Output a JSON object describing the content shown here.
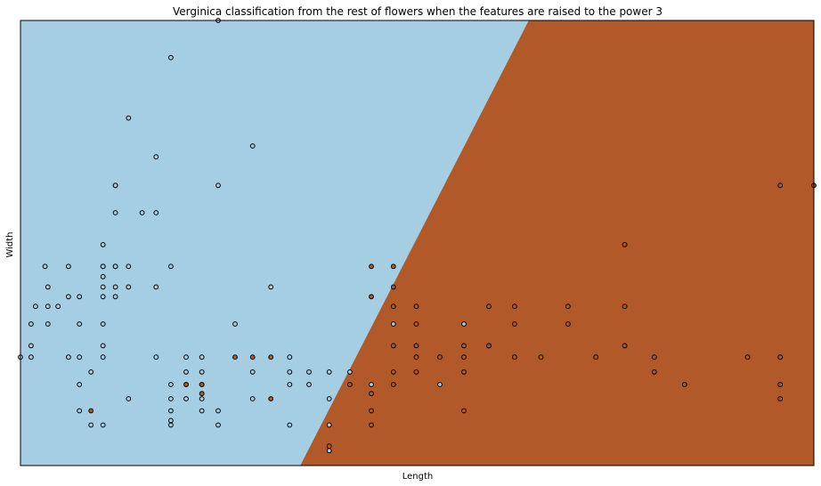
{
  "chart_data": {
    "type": "scatter",
    "title": "Verginica classification from the rest of flowers when the features are raised to the power 3",
    "xlabel": "Length",
    "ylabel": "Width",
    "xlim": [
      64.0,
      512.0
    ],
    "ylim": [
      8.0,
      86.0
    ],
    "grid": false,
    "legend": "none",
    "background_regions": [
      {
        "class": "not virginica",
        "color": "#a6cee3"
      },
      {
        "class": "virginica",
        "color": "#b15928"
      }
    ],
    "decision_boundary": [
      [
        222.0,
        8.0
      ],
      [
        351.0,
        86.0
      ]
    ],
    "colors": {
      "not_virginica": "#a6cee3",
      "virginica": "#b15928",
      "edge": "#000000"
    },
    "series": [
      {
        "class": "not virginica",
        "points": [
          [
            64.0,
            27.0
          ],
          [
            70.0,
            27.0
          ],
          [
            70.0,
            29.0
          ],
          [
            70.0,
            32.8
          ],
          [
            72.5,
            35.9
          ],
          [
            77.9,
            42.9
          ],
          [
            79.5,
            35.9
          ],
          [
            79.5,
            39.3
          ],
          [
            79.5,
            32.8
          ],
          [
            85.2,
            35.9
          ],
          [
            91.1,
            42.9
          ],
          [
            91.1,
            37.6
          ],
          [
            91.1,
            27.0
          ],
          [
            97.3,
            37.6
          ],
          [
            97.3,
            32.8
          ],
          [
            97.3,
            27.0
          ],
          [
            97.3,
            22.2
          ],
          [
            97.3,
            17.6
          ],
          [
            103.8,
            24.4
          ],
          [
            103.8,
            15.1
          ],
          [
            110.6,
            46.7
          ],
          [
            110.6,
            42.9
          ],
          [
            110.6,
            42.9
          ],
          [
            110.6,
            39.3
          ],
          [
            110.6,
            37.6
          ],
          [
            110.6,
            32.8
          ],
          [
            110.6,
            29.0
          ],
          [
            110.6,
            41.1
          ],
          [
            110.6,
            27.0
          ],
          [
            110.6,
            15.1
          ],
          [
            117.6,
            57.1
          ],
          [
            117.6,
            57.1
          ],
          [
            117.6,
            52.3
          ],
          [
            117.6,
            42.9
          ],
          [
            117.6,
            42.9
          ],
          [
            117.6,
            39.3
          ],
          [
            117.6,
            37.6
          ],
          [
            125.0,
            68.9
          ],
          [
            125.0,
            42.9
          ],
          [
            125.0,
            39.3
          ],
          [
            125.0,
            19.7
          ],
          [
            132.7,
            52.3
          ],
          [
            140.6,
            62.1
          ],
          [
            140.6,
            52.3
          ],
          [
            140.6,
            39.3
          ],
          [
            140.6,
            27.0
          ],
          [
            148.9,
            79.5
          ],
          [
            148.9,
            42.9
          ],
          [
            148.9,
            22.2
          ],
          [
            148.9,
            17.6
          ],
          [
            148.9,
            19.7
          ],
          [
            148.9,
            15.9
          ],
          [
            148.9,
            15.1
          ],
          [
            157.5,
            27.0
          ],
          [
            157.5,
            24.4
          ],
          [
            157.5,
            22.2
          ],
          [
            157.5,
            19.7
          ],
          [
            166.4,
            27.0
          ],
          [
            166.4,
            24.4
          ],
          [
            166.4,
            22.2
          ],
          [
            166.4,
            19.7
          ],
          [
            166.4,
            17.6
          ],
          [
            175.6,
            57.1
          ],
          [
            175.6,
            86.0
          ],
          [
            175.6,
            17.6
          ],
          [
            175.6,
            15.1
          ],
          [
            195.1,
            64.0
          ],
          [
            195.1,
            19.7
          ],
          [
            195.1,
            24.4
          ],
          [
            185.2,
            32.8
          ],
          [
            205.4,
            39.3
          ],
          [
            216.0,
            27.0
          ],
          [
            216.0,
            24.4
          ],
          [
            216.0,
            22.2
          ],
          [
            216.0,
            15.1
          ],
          [
            226.9,
            24.4
          ],
          [
            226.9,
            22.2
          ],
          [
            238.3,
            24.4
          ],
          [
            238.3,
            19.7
          ],
          [
            238.3,
            15.1
          ],
          [
            238.3,
            10.6
          ],
          [
            250.0,
            24.4
          ],
          [
            262.1,
            22.2
          ],
          [
            274.6,
            32.8
          ],
          [
            300.8,
            22.2
          ],
          [
            314.4,
            32.8
          ]
        ]
      },
      {
        "class": "virginica",
        "points": [
          [
            103.8,
            17.6
          ],
          [
            157.5,
            22.2
          ],
          [
            166.4,
            22.2
          ],
          [
            166.4,
            20.6
          ],
          [
            185.2,
            27.0
          ],
          [
            195.1,
            27.0
          ],
          [
            205.4,
            27.0
          ],
          [
            205.4,
            19.7
          ],
          [
            238.3,
            11.4
          ],
          [
            250.0,
            22.2
          ],
          [
            262.1,
            42.9
          ],
          [
            262.1,
            37.6
          ],
          [
            262.1,
            20.6
          ],
          [
            274.6,
            42.9
          ],
          [
            274.6,
            39.3
          ],
          [
            274.6,
            35.9
          ],
          [
            274.6,
            24.4
          ],
          [
            274.6,
            22.2
          ],
          [
            262.1,
            17.6
          ],
          [
            262.1,
            15.1
          ],
          [
            287.5,
            35.9
          ],
          [
            287.5,
            32.8
          ],
          [
            287.5,
            29.0
          ],
          [
            287.5,
            27.0
          ],
          [
            274.6,
            29.0
          ],
          [
            287.5,
            24.4
          ],
          [
            314.4,
            29.0
          ],
          [
            314.4,
            27.0
          ],
          [
            328.5,
            35.9
          ],
          [
            314.4,
            24.4
          ],
          [
            328.5,
            29.0
          ],
          [
            328.5,
            29.0
          ],
          [
            343.0,
            35.9
          ],
          [
            343.0,
            32.8
          ],
          [
            343.0,
            27.0
          ],
          [
            357.9,
            27.0
          ],
          [
            373.2,
            32.8
          ],
          [
            373.2,
            35.9
          ],
          [
            388.9,
            27.0
          ],
          [
            405.2,
            29.0
          ],
          [
            405.2,
            35.9
          ],
          [
            405.2,
            46.7
          ],
          [
            421.9,
            24.4
          ],
          [
            421.9,
            27.0
          ],
          [
            439.0,
            22.2
          ],
          [
            474.6,
            27.0
          ],
          [
            493.0,
            27.0
          ],
          [
            493.0,
            22.2
          ],
          [
            493.0,
            19.7
          ],
          [
            493.0,
            57.1
          ],
          [
            512.0,
            57.1
          ],
          [
            314.4,
            17.6
          ],
          [
            300.8,
            27.0
          ]
        ]
      }
    ]
  }
}
